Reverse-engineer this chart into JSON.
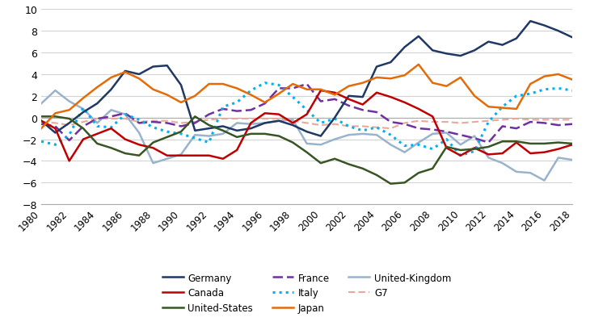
{
  "years": [
    1980,
    1981,
    1982,
    1983,
    1984,
    1985,
    1986,
    1987,
    1988,
    1989,
    1990,
    1991,
    1992,
    1993,
    1994,
    1995,
    1996,
    1997,
    1998,
    1999,
    2000,
    2001,
    2002,
    2003,
    2004,
    2005,
    2006,
    2007,
    2008,
    2009,
    2010,
    2011,
    2012,
    2013,
    2014,
    2015,
    2016,
    2017,
    2018
  ],
  "Germany": [
    -0.3,
    -1.4,
    -0.5,
    0.5,
    1.3,
    2.6,
    4.3,
    4.0,
    4.7,
    4.8,
    3.0,
    -1.2,
    -1.0,
    -0.8,
    -1.2,
    -1.0,
    -0.5,
    -0.3,
    -0.7,
    -1.3,
    -1.7,
    0.0,
    2.0,
    1.9,
    4.7,
    5.1,
    6.5,
    7.5,
    6.2,
    5.9,
    5.7,
    6.2,
    7.0,
    6.7,
    7.3,
    8.9,
    8.5,
    8.0,
    7.4
  ],
  "Canada": [
    -0.3,
    -1.0,
    -4.0,
    -2.0,
    -1.5,
    -1.0,
    -2.0,
    -2.5,
    -2.8,
    -3.5,
    -3.5,
    -3.5,
    -3.5,
    -3.8,
    -3.0,
    -0.5,
    0.4,
    0.3,
    -0.5,
    0.3,
    2.5,
    2.3,
    1.7,
    1.2,
    2.3,
    1.9,
    1.4,
    0.8,
    0.1,
    -2.8,
    -3.5,
    -2.8,
    -3.4,
    -3.3,
    -2.3,
    -3.3,
    -3.2,
    -2.9,
    -2.5
  ],
  "United_States": [
    0.1,
    0.1,
    -0.1,
    -1.0,
    -2.4,
    -2.8,
    -3.3,
    -3.5,
    -2.3,
    -1.8,
    -1.3,
    0.1,
    -0.7,
    -1.2,
    -1.8,
    -1.5,
    -1.5,
    -1.7,
    -2.3,
    -3.2,
    -4.2,
    -3.8,
    -4.3,
    -4.7,
    -5.3,
    -6.1,
    -6.0,
    -5.1,
    -4.7,
    -2.7,
    -3.0,
    -2.9,
    -2.7,
    -2.2,
    -2.2,
    -2.4,
    -2.4,
    -2.3,
    -2.4
  ],
  "France": [
    -0.6,
    -0.8,
    -2.1,
    -0.8,
    -0.1,
    0.1,
    0.4,
    -0.5,
    -0.4,
    -0.5,
    -0.8,
    -0.5,
    0.3,
    0.8,
    0.6,
    0.7,
    1.3,
    2.7,
    2.7,
    3.1,
    1.5,
    1.7,
    1.1,
    0.7,
    0.5,
    -0.4,
    -0.6,
    -1.0,
    -1.1,
    -1.3,
    -1.6,
    -1.9,
    -2.3,
    -0.8,
    -1.0,
    -0.4,
    -0.5,
    -0.7,
    -0.6
  ],
  "Italy": [
    -2.2,
    -2.5,
    -1.6,
    0.9,
    -0.8,
    -0.9,
    0.3,
    -0.2,
    -0.9,
    -1.3,
    -1.5,
    -1.9,
    -2.3,
    1.0,
    1.4,
    2.5,
    3.2,
    3.0,
    1.9,
    0.7,
    -0.5,
    -0.1,
    -0.8,
    -1.2,
    -0.9,
    -1.6,
    -2.6,
    -2.5,
    -2.9,
    -2.0,
    -3.5,
    -3.1,
    -0.4,
    1.0,
    2.0,
    2.2,
    2.6,
    2.7,
    2.5
  ],
  "Japan": [
    -1.0,
    0.4,
    0.7,
    1.8,
    2.8,
    3.7,
    4.2,
    3.6,
    2.6,
    2.1,
    1.4,
    2.0,
    3.1,
    3.1,
    2.7,
    2.1,
    1.4,
    2.2,
    3.1,
    2.6,
    2.6,
    2.1,
    2.9,
    3.2,
    3.7,
    3.6,
    3.9,
    4.9,
    3.2,
    2.9,
    3.7,
    2.0,
    1.0,
    0.9,
    0.8,
    3.1,
    3.8,
    4.0,
    3.5
  ],
  "United_Kingdom": [
    1.3,
    2.5,
    1.5,
    0.8,
    -0.5,
    0.7,
    0.3,
    -1.4,
    -4.2,
    -3.8,
    -3.4,
    -1.6,
    -1.7,
    -1.5,
    -0.5,
    -0.6,
    -0.5,
    -0.3,
    -0.2,
    -2.4,
    -2.5,
    -2.0,
    -1.6,
    -1.5,
    -1.6,
    -2.5,
    -3.2,
    -2.3,
    -1.5,
    -1.4,
    -2.5,
    -1.7,
    -3.7,
    -4.2,
    -5.0,
    -5.1,
    -5.8,
    -3.7,
    -3.9
  ],
  "G7": [
    -0.4,
    -0.5,
    -0.7,
    -0.4,
    -0.1,
    -0.1,
    -0.1,
    -0.4,
    -0.3,
    -0.3,
    -0.5,
    -0.4,
    -0.2,
    -0.1,
    -0.1,
    -0.1,
    -0.1,
    -0.1,
    -0.3,
    -0.5,
    -0.7,
    -0.6,
    -0.8,
    -0.8,
    -0.9,
    -1.0,
    -0.5,
    -0.3,
    -0.4,
    -0.4,
    -0.5,
    -0.4,
    -0.3,
    -0.2,
    -0.1,
    -0.2,
    -0.2,
    -0.2,
    -0.2
  ],
  "colors": {
    "Germany": "#1f3864",
    "Canada": "#c00000",
    "United_States": "#375623",
    "France": "#7030a0",
    "Italy": "#00b0f0",
    "Japan": "#e36c09",
    "United_Kingdom": "#99b3cc",
    "G7": "#e8a99a"
  },
  "ylim": [
    -8,
    10
  ],
  "yticks": [
    -8,
    -6,
    -4,
    -2,
    0,
    2,
    4,
    6,
    8,
    10
  ],
  "xlim": [
    1980,
    2018
  ],
  "xtick_years": [
    1980,
    1982,
    1984,
    1986,
    1988,
    1990,
    1992,
    1994,
    1996,
    1998,
    2000,
    2002,
    2004,
    2006,
    2008,
    2010,
    2012,
    2014,
    2016,
    2018
  ]
}
